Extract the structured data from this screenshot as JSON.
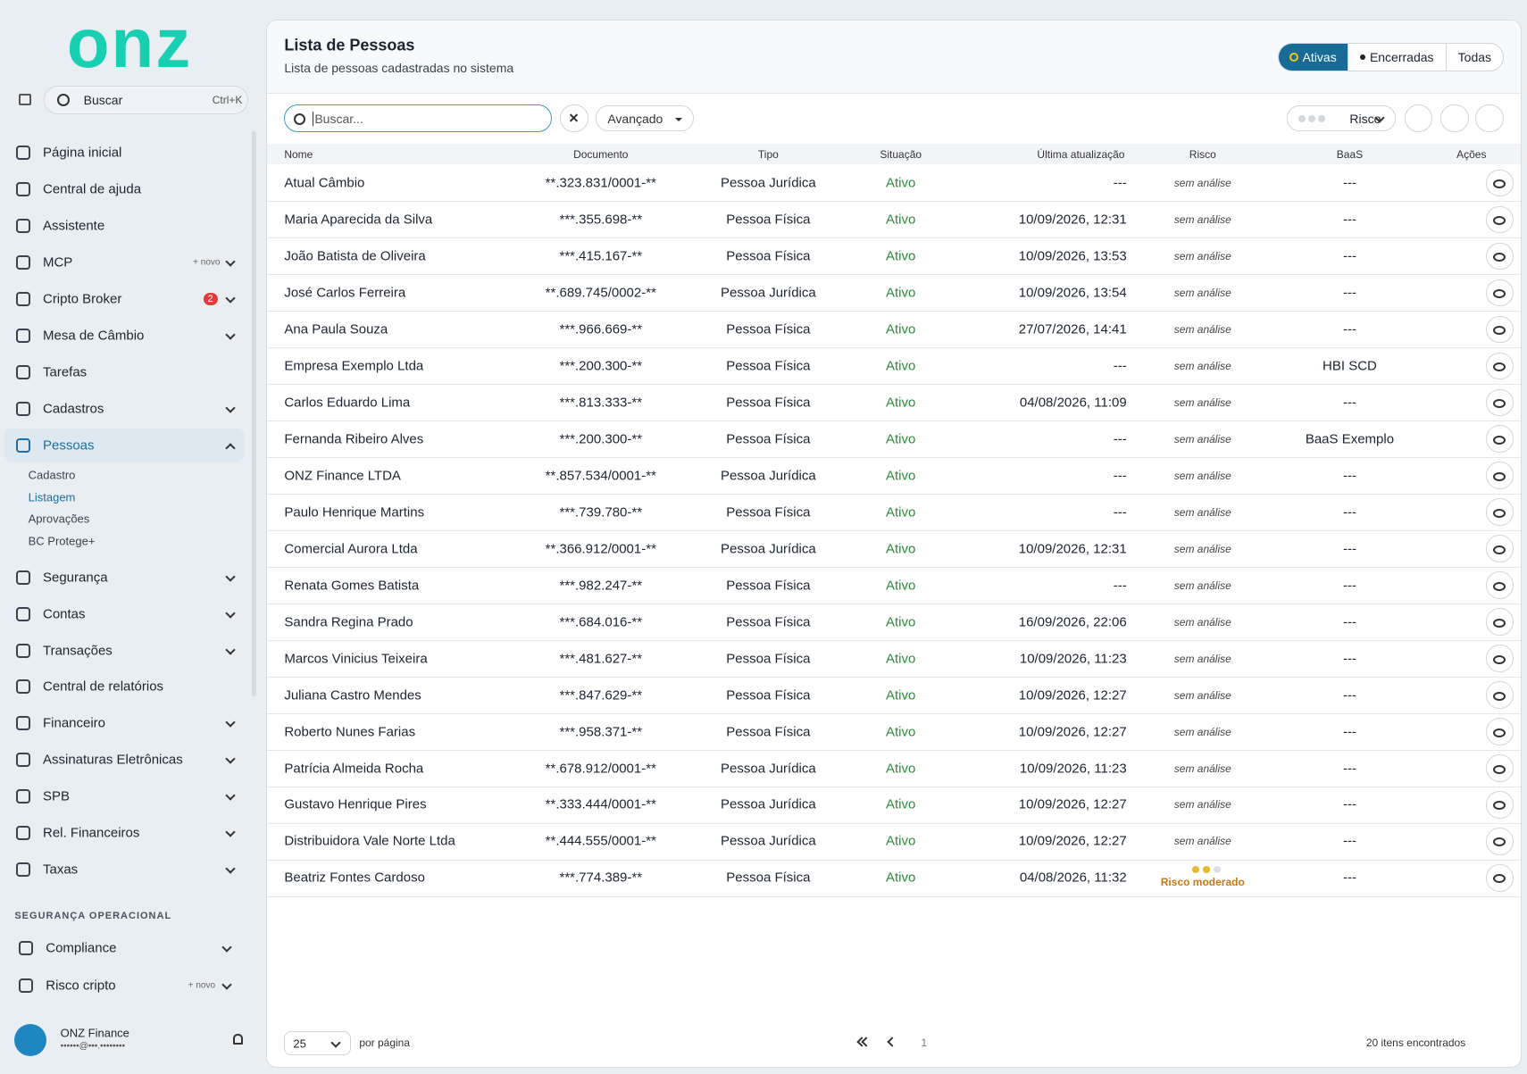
{
  "logo": "onz",
  "sidebar": {
    "search": "Buscar",
    "shortcut": "Ctrl+K",
    "nav": [
      {
        "label": "Página inicial"
      },
      {
        "label": "Central de ajuda"
      },
      {
        "label": "Assistente"
      },
      {
        "label": "MCP",
        "tag": "+ novo"
      },
      {
        "label": "Cripto Broker",
        "badge": 2
      },
      {
        "label": "Mesa de Câmbio"
      },
      {
        "label": "Tarefas"
      },
      {
        "label": "Cadastros"
      },
      {
        "label": "Pessoas",
        "children": [
          "Cadastro",
          "Listagem",
          "Aprovações",
          "BC Protege+"
        ]
      },
      {
        "label": "Segurança"
      },
      {
        "label": "Contas"
      },
      {
        "label": "Transações"
      },
      {
        "label": "Central de relatórios"
      },
      {
        "label": "Financeiro"
      },
      {
        "label": "Assinaturas Eletrônicas"
      },
      {
        "label": "SPB"
      },
      {
        "label": "Rel. Financeiros"
      },
      {
        "label": "Taxas"
      }
    ],
    "section": {
      "title": "SEGURANÇA OPERACIONAL",
      "items": [
        {
          "label": "Compliance"
        },
        {
          "label": "Risco cripto",
          "tag": "+ novo"
        }
      ]
    },
    "user": {
      "name": "ONZ Finance",
      "email": "••••••@•••.••••••••"
    }
  },
  "header": {
    "title": "Lista de Pessoas",
    "subtitle": "Lista de pessoas cadastradas no sistema",
    "tabs": [
      "Ativas",
      "Encerradas",
      "Todas"
    ]
  },
  "toolbar": {
    "search": "Buscar...",
    "advanced": "Avançado",
    "risk": "Risco"
  },
  "table": {
    "columns": [
      "Nome",
      "Documento",
      "Tipo",
      "Situação",
      "Última atualização",
      "Risco",
      "BaaS",
      "Ações"
    ],
    "rows": [
      [
        "Atual Câmbio",
        "**.323.831/0001-**",
        "Pessoa Jurídica",
        "Ativo",
        "---",
        "sem análise",
        "---"
      ],
      [
        "Maria Aparecida da Silva",
        "***.355.698-**",
        "Pessoa Física",
        "Ativo",
        "10/09/2026, 12:31",
        "sem análise",
        "---"
      ],
      [
        "João Batista de Oliveira",
        "***.415.167-**",
        "Pessoa Física",
        "Ativo",
        "10/09/2026, 13:53",
        "sem análise",
        "---"
      ],
      [
        "José Carlos Ferreira",
        "**.689.745/0002-**",
        "Pessoa Jurídica",
        "Ativo",
        "10/09/2026, 13:54",
        "sem análise",
        "---"
      ],
      [
        "Ana Paula Souza",
        "***.966.669-**",
        "Pessoa Física",
        "Ativo",
        "27/07/2026, 14:41",
        "sem análise",
        "---"
      ],
      [
        "Empresa Exemplo Ltda",
        "***.200.300-**",
        "Pessoa Física",
        "Ativo",
        "---",
        "sem análise",
        "HBI SCD"
      ],
      [
        "Carlos Eduardo Lima",
        "***.813.333-**",
        "Pessoa Física",
        "Ativo",
        "04/08/2026, 11:09",
        "sem análise",
        "---"
      ],
      [
        "Fernanda Ribeiro Alves",
        "***.200.300-**",
        "Pessoa Física",
        "Ativo",
        "---",
        "sem análise",
        "BaaS Exemplo"
      ],
      [
        "ONZ Finance LTDA",
        "**.857.534/0001-**",
        "Pessoa Jurídica",
        "Ativo",
        "---",
        "sem análise",
        "---"
      ],
      [
        "Paulo Henrique Martins",
        "***.739.780-**",
        "Pessoa Física",
        "Ativo",
        "---",
        "sem análise",
        "---"
      ],
      [
        "Comercial Aurora Ltda",
        "**.366.912/0001-**",
        "Pessoa Jurídica",
        "Ativo",
        "10/09/2026, 12:31",
        "sem análise",
        "---"
      ],
      [
        "Renata Gomes Batista",
        "***.982.247-**",
        "Pessoa Física",
        "Ativo",
        "---",
        "sem análise",
        "---"
      ],
      [
        "Sandra Regina Prado",
        "***.684.016-**",
        "Pessoa Física",
        "Ativo",
        "16/09/2026, 22:06",
        "sem análise",
        "---"
      ],
      [
        "Marcos Vinicius Teixeira",
        "***.481.627-**",
        "Pessoa Física",
        "Ativo",
        "10/09/2026, 11:23",
        "sem análise",
        "---"
      ],
      [
        "Juliana Castro Mendes",
        "***.847.629-**",
        "Pessoa Física",
        "Ativo",
        "10/09/2026, 12:27",
        "sem análise",
        "---"
      ],
      [
        "Roberto Nunes Farias",
        "***.958.371-**",
        "Pessoa Física",
        "Ativo",
        "10/09/2026, 12:27",
        "sem análise",
        "---"
      ],
      [
        "Patrícia Almeida Rocha",
        "**.678.912/0001-**",
        "Pessoa Jurídica",
        "Ativo",
        "10/09/2026, 11:23",
        "sem análise",
        "---"
      ],
      [
        "Gustavo Henrique Pires",
        "**.333.444/0001-**",
        "Pessoa Jurídica",
        "Ativo",
        "10/09/2026, 12:27",
        "sem análise",
        "---"
      ],
      [
        "Distribuidora Vale Norte Ltda",
        "**.444.555/0001-**",
        "Pessoa Jurídica",
        "Ativo",
        "10/09/2026, 12:27",
        "sem análise",
        "---"
      ],
      [
        "Beatriz Fontes Cardoso",
        "***.774.389-**",
        "Pessoa Física",
        "Ativo",
        "04/08/2026, 11:32",
        "Risco moderado",
        "---"
      ]
    ]
  },
  "footer": {
    "page_size": "25",
    "per_page": "por página",
    "page": "1",
    "count": "20 itens encontrados"
  }
}
